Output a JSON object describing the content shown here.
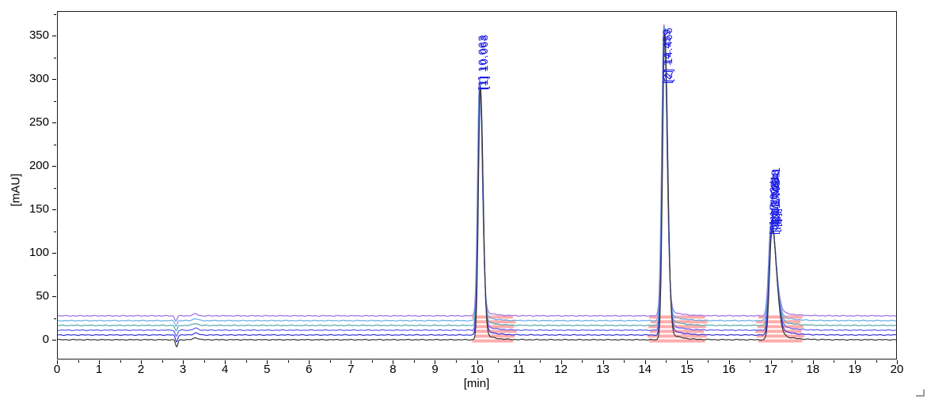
{
  "chart_data": {
    "type": "line",
    "title": "",
    "xlabel": "[min]",
    "ylabel": "[mAU]",
    "xlim": [
      0,
      20
    ],
    "ylim": [
      -22.7,
      378
    ],
    "x_ticks": [
      0,
      1,
      2,
      3,
      4,
      5,
      6,
      7,
      8,
      9,
      10,
      11,
      12,
      13,
      14,
      15,
      16,
      17,
      18,
      19,
      20
    ],
    "y_ticks": [
      0,
      50,
      100,
      150,
      200,
      250,
      300,
      350
    ],
    "grid": "off",
    "legend": "none",
    "label_color": "#1a1ae6",
    "integration_color": "#ff9d9d",
    "traces": [
      {
        "name": "black",
        "color": "#3a3a3a",
        "offset_mau": 0
      },
      {
        "name": "dark-blue",
        "color": "#3535d8",
        "offset_mau": 5.5
      },
      {
        "name": "blue",
        "color": "#5d5dee",
        "offset_mau": 11
      },
      {
        "name": "teal",
        "color": "#53a7a7",
        "offset_mau": 16.5
      },
      {
        "name": "light-blue",
        "color": "#64acea",
        "offset_mau": 22
      },
      {
        "name": "purple",
        "color": "#9c6ce4",
        "offset_mau": 27.5
      }
    ],
    "peaks": [
      {
        "index": 1,
        "rt_min": 10.07,
        "height_mau": 288,
        "sigma_left": 0.045,
        "sigma_right": 0.065,
        "tail_frac": 0.035,
        "tail_tau": 0.22,
        "labels": [
          "[1] 10.063",
          "[1] 10.068"
        ]
      },
      {
        "index": 2,
        "rt_min": 14.46,
        "height_mau": 350,
        "sigma_left": 0.05,
        "sigma_right": 0.07,
        "tail_frac": 0.035,
        "tail_tau": 0.25,
        "labels": [
          "[2] 14.459",
          "[2] 14.466"
        ]
      },
      {
        "index": 3,
        "rt_min": 17.01,
        "height_mau": 122,
        "sigma_left": 0.055,
        "sigma_right": 0.11,
        "tail_frac": 0.1,
        "tail_tau": 0.28,
        "labels": [
          "[3] 17.024",
          "[3] 17.028",
          "[3] 17.031",
          "[3] 17.034",
          "[3] 17.038",
          "[3] 17.041"
        ]
      }
    ],
    "solvent_front": {
      "rt_min": 2.84,
      "dip_mau": -8,
      "bump_rt_min": 3.3,
      "bump_mau": 2.2
    },
    "integration_regions": [
      {
        "start_min": 9.92,
        "end_min": 10.9
      },
      {
        "start_min": 14.1,
        "end_min": 15.45
      },
      {
        "start_min": 16.66,
        "end_min": 17.75
      }
    ]
  }
}
